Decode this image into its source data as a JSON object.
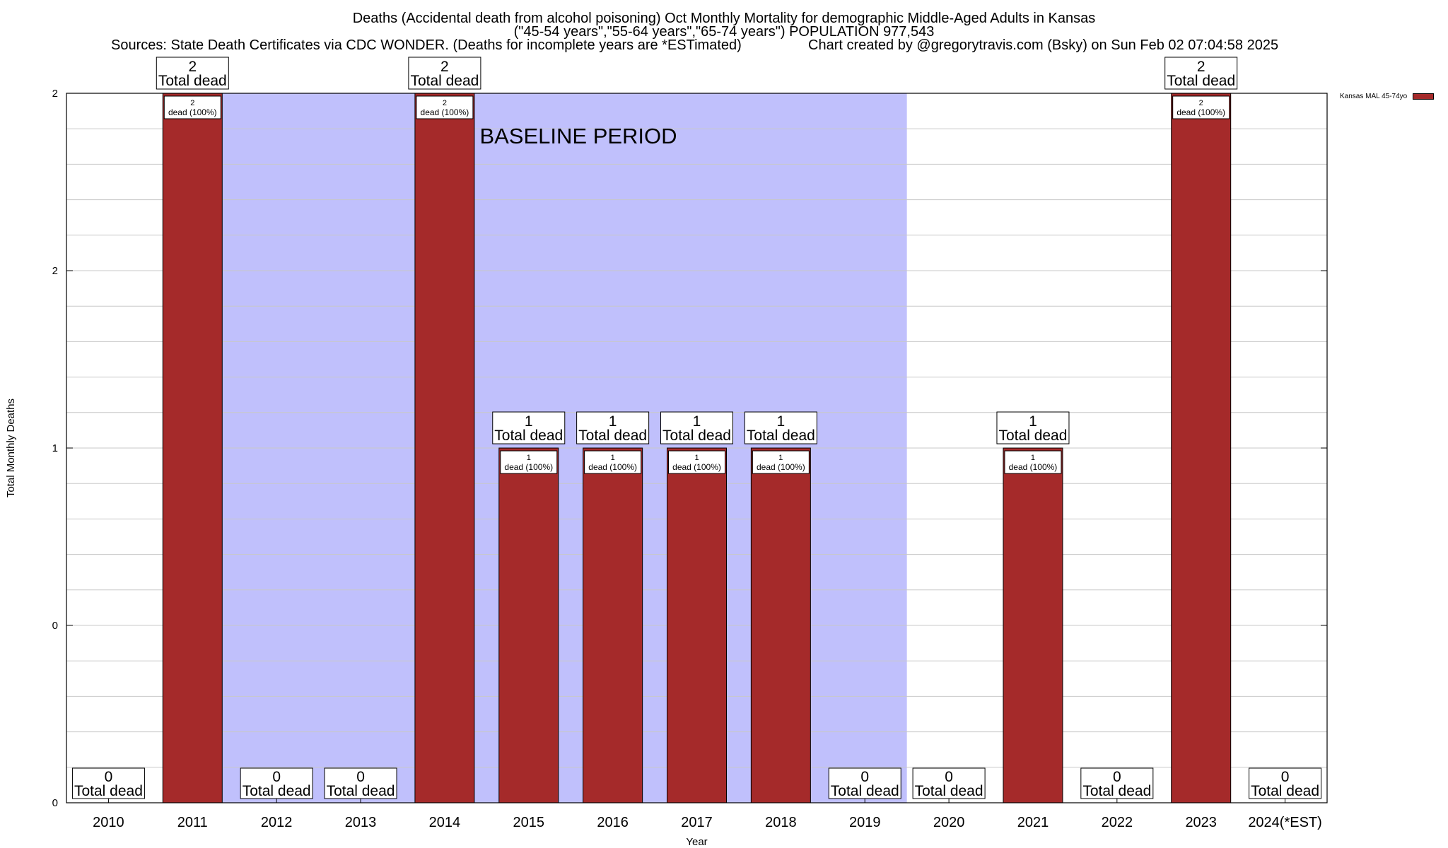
{
  "chart_data": {
    "type": "bar",
    "title_lines": [
      "Deaths (Accidental death from alcohol poisoning) Oct Monthly Mortality for demographic Middle-Aged Adults in Kansas",
      "(\"45-54 years\",\"55-64 years\",\"65-74 years\") POPULATION 977,543"
    ],
    "sources": "Sources: State Death Certificates via CDC WONDER. (Deaths for incomplete years are *ESTimated)",
    "credit": "Chart created by @gregorytravis.com (Bsky) on Sun Feb 02 07:04:58 2025",
    "xlabel": "Year",
    "ylabel": "Total Monthly Deaths",
    "ylim": [
      0,
      2
    ],
    "y_tick_labels": [
      "0",
      "0",
      "1",
      "2",
      "2"
    ],
    "y_tick_values": [
      0,
      0.5,
      1,
      1.5,
      2
    ],
    "categories": [
      "2010",
      "2011",
      "2012",
      "2013",
      "2014",
      "2015",
      "2016",
      "2017",
      "2018",
      "2019",
      "2020",
      "2021",
      "2022",
      "2023",
      "2024(*EST)"
    ],
    "series": [
      {
        "name": "Kansas MAL 45-74yo",
        "color": "#a52a2a",
        "values": [
          0,
          2,
          0,
          0,
          2,
          1,
          1,
          1,
          1,
          0,
          0,
          1,
          0,
          2,
          0
        ]
      }
    ],
    "total_label_word": "Total dead",
    "inner_label_suffix": "dead (100%)",
    "baseline": {
      "label": "BASELINE PERIOD",
      "start_year": "2012",
      "end_year": "2019",
      "color": "#c0c0fc"
    },
    "grid": true,
    "legend_position": "top-right"
  }
}
